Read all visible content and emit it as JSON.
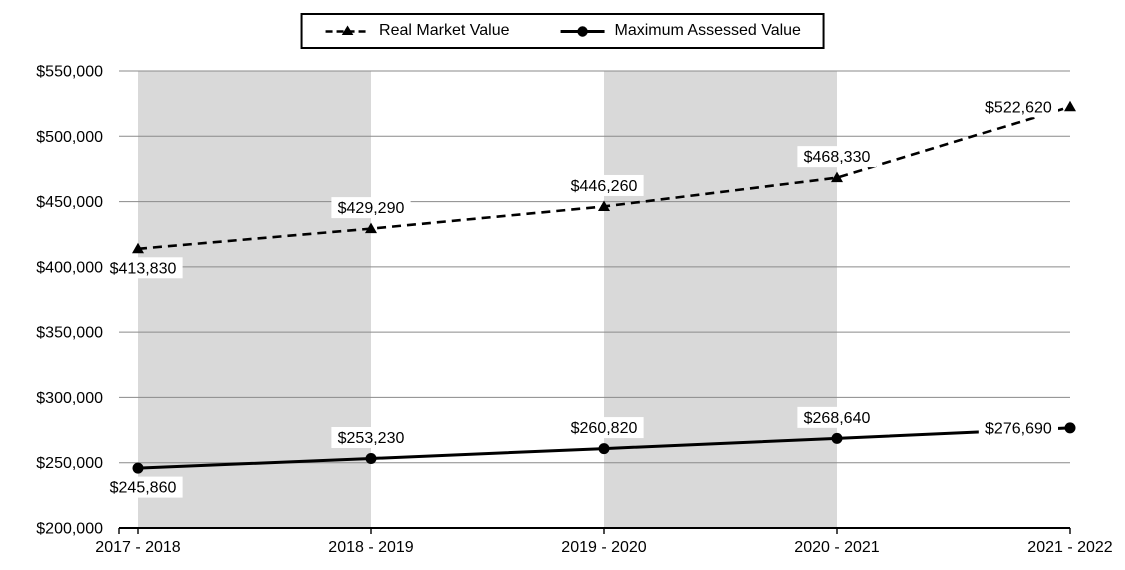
{
  "chart_data": {
    "type": "line",
    "categories": [
      "2017 - 2018",
      "2018 - 2019",
      "2019 - 2020",
      "2020 - 2021",
      "2021 - 2022"
    ],
    "series": [
      {
        "name": "Real Market Value",
        "marker": "triangle",
        "line_style": "dashed",
        "values": [
          413830,
          429290,
          446260,
          468330,
          522620
        ],
        "data_labels": [
          "$413,830",
          "$429,290",
          "$446,260",
          "$468,330",
          "$522,620"
        ],
        "label_positions": [
          "below",
          "above",
          "above",
          "above",
          "left"
        ]
      },
      {
        "name": "Maximum Assessed Value",
        "marker": "circle",
        "line_style": "solid",
        "values": [
          245860,
          253230,
          260820,
          268640,
          276690
        ],
        "data_labels": [
          "$245,860",
          "$253,230",
          "$260,820",
          "$268,640",
          "$276,690"
        ],
        "label_positions": [
          "below",
          "above",
          "above",
          "above",
          "left"
        ]
      }
    ],
    "y_axis": {
      "min": 200000,
      "max": 550000,
      "step": 50000,
      "tick_labels": [
        "$200,000",
        "$250,000",
        "$300,000",
        "$350,000",
        "$400,000",
        "$450,000",
        "$500,000",
        "$550,000"
      ]
    },
    "ylim": [
      200000,
      550000
    ],
    "grid": true,
    "legend_position": "top",
    "plot_bands": {
      "between_category_indexes": [
        [
          0,
          1
        ],
        [
          2,
          3
        ]
      ]
    },
    "colors": {
      "series_line": "#000000",
      "gridline": "#8a8a8a",
      "axis": "#000000",
      "band": "#d9d9d9",
      "label_background": "#ffffff",
      "text": "#000000"
    }
  }
}
